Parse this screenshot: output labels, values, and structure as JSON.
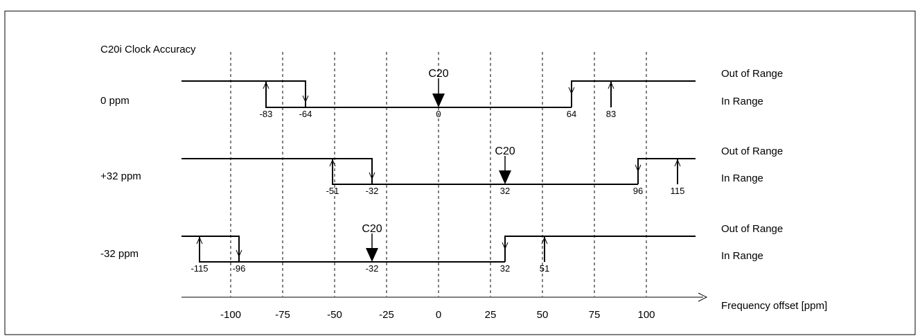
{
  "header": {
    "title": "C20i Clock Accuracy"
  },
  "axis": {
    "label": "Frequency offset [ppm]",
    "ticks": [
      -100,
      -75,
      -50,
      -25,
      0,
      25,
      50,
      75,
      100
    ]
  },
  "legend": {
    "out_label": "Out of Range",
    "in_label": "In Range"
  },
  "marker_label": "C20",
  "rows": [
    {
      "label": "0 ppm",
      "center": 0,
      "left": {
        "outer": -83,
        "inner": -64
      },
      "right": {
        "inner": 64,
        "outer": 83
      }
    },
    {
      "label": "+32 ppm",
      "center": 32,
      "left": {
        "outer": -51,
        "inner": -32
      },
      "right": {
        "inner": 96,
        "outer": 115
      }
    },
    {
      "label": "-32 ppm",
      "center": -32,
      "left": {
        "outer": -115,
        "inner": -96
      },
      "right": {
        "inner": 32,
        "outer": 51
      }
    }
  ]
}
